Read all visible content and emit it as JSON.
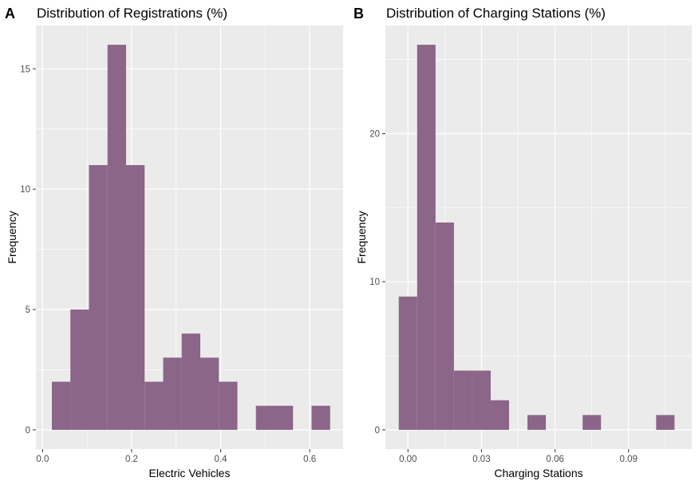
{
  "chart_data": [
    {
      "type": "bar",
      "panel_label": "A",
      "title": "Distribution of Registrations (%)",
      "xlabel": "Electric Vehicles",
      "ylabel": "Frequency",
      "xlim": [
        -0.015,
        0.675
      ],
      "ylim": [
        -0.8,
        16.8
      ],
      "xticks": [
        0.0,
        0.2,
        0.4,
        0.6
      ],
      "xtick_labels": [
        "0.0",
        "0.2",
        "0.4",
        "0.6"
      ],
      "yticks": [
        0,
        5,
        10,
        15
      ],
      "ytick_labels": [
        "0",
        "5",
        "10",
        "15"
      ],
      "bin_width": 0.0417,
      "bin_centers": [
        0.0417,
        0.0833,
        0.125,
        0.1667,
        0.2083,
        0.25,
        0.2917,
        0.3333,
        0.375,
        0.4167,
        0.4583,
        0.5,
        0.5417,
        0.5833,
        0.625
      ],
      "counts": [
        2,
        5,
        11,
        16,
        11,
        2,
        3,
        4,
        3,
        2,
        0,
        1,
        1,
        0,
        1
      ],
      "bar_color": "#8b6688",
      "panel_background": "#ebebeb",
      "grid": true
    },
    {
      "type": "bar",
      "panel_label": "B",
      "title": "Distribution of Charging Stations (%)",
      "xlabel": "Charging Stations",
      "ylabel": "Frequency",
      "xlim": [
        -0.0092,
        0.1158
      ],
      "ylim": [
        -1.3,
        27.3
      ],
      "xticks": [
        0.0,
        0.03,
        0.06,
        0.09
      ],
      "xtick_labels": [
        "0.00",
        "0.03",
        "0.06",
        "0.09"
      ],
      "yticks": [
        0,
        10,
        20
      ],
      "ytick_labels": [
        "0",
        "10",
        "20"
      ],
      "bin_width": 0.0075,
      "bin_centers": [
        0.0,
        0.0075,
        0.015,
        0.0225,
        0.03,
        0.0375,
        0.045,
        0.0525,
        0.06,
        0.0675,
        0.075,
        0.0825,
        0.09,
        0.0975,
        0.105
      ],
      "counts": [
        9,
        26,
        14,
        4,
        4,
        2,
        0,
        1,
        0,
        0,
        1,
        0,
        0,
        0,
        1
      ],
      "bar_color": "#8b6688",
      "panel_background": "#ebebeb",
      "grid": true
    }
  ]
}
